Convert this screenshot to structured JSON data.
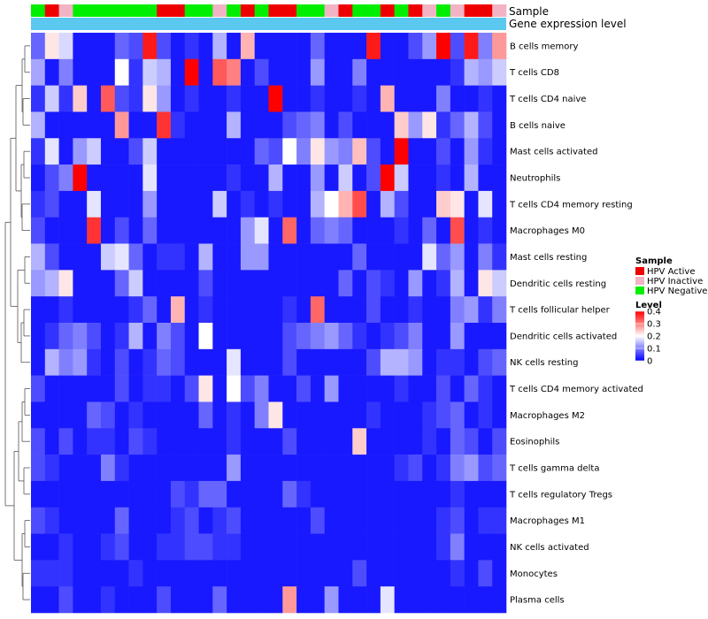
{
  "chart_data": {
    "type": "heatmap",
    "annotation_tracks": [
      "Sample",
      "Gene expression level"
    ],
    "sample_groups": [
      "HPV Active",
      "HPV Inactive",
      "HPV Negative"
    ],
    "sample_group_colors": {
      "HPV Active": "#ee0000",
      "HPV Inactive": "#f2b4c4",
      "HPV Negative": "#00ee00"
    },
    "gene_expression_color": "#5bc8f0",
    "samples": [
      "N",
      "A",
      "I",
      "N",
      "N",
      "N",
      "N",
      "N",
      "N",
      "A",
      "A",
      "N",
      "N",
      "I",
      "N",
      "A",
      "N",
      "A",
      "A",
      "N",
      "N",
      "I",
      "A",
      "N",
      "N",
      "A",
      "N",
      "A",
      "I",
      "N",
      "I",
      "A",
      "A",
      "I"
    ],
    "rows": [
      "B cells memory",
      "T cells CD8",
      "T cells CD4 naive",
      "B cells naive",
      "Mast cells activated",
      "Neutrophils",
      "T cells CD4 memory resting",
      "Macrophages M0",
      "Mast cells resting",
      "Dendritic cells resting",
      "T cells follicular helper",
      "Dendritic cells activated",
      "NK cells resting",
      "T cells CD4 memory activated",
      "Macrophages M2",
      "Eosinophils",
      "T cells gamma delta",
      "T cells regulatory  Tregs",
      "Macrophages M1",
      "NK cells activated",
      "Monocytes",
      "Plasma cells"
    ],
    "values": [
      [
        0.08,
        0.22,
        0.17,
        0.02,
        0.02,
        0.02,
        0.08,
        0.06,
        0.38,
        0.06,
        0.02,
        0.04,
        0.02,
        0.14,
        0.02,
        0.26,
        0.02,
        0.02,
        0.02,
        0.02,
        0.08,
        0.02,
        0.02,
        0.02,
        0.38,
        0.02,
        0.02,
        0.06,
        0.12,
        0.4,
        0.06,
        0.38,
        0.1,
        0.28
      ],
      [
        0.13,
        0.02,
        0.1,
        0.02,
        0.02,
        0.02,
        0.2,
        0.04,
        0.16,
        0.14,
        0.02,
        0.4,
        0.02,
        0.33,
        0.3,
        0.02,
        0.06,
        0.02,
        0.02,
        0.02,
        0.12,
        0.02,
        0.02,
        0.1,
        0.02,
        0.02,
        0.02,
        0.02,
        0.02,
        0.02,
        0.04,
        0.14,
        0.12,
        0.16
      ],
      [
        0.04,
        0.16,
        0.04,
        0.24,
        0.02,
        0.33,
        0.06,
        0.04,
        0.22,
        0.12,
        0.02,
        0.04,
        0.02,
        0.02,
        0.04,
        0.02,
        0.02,
        0.4,
        0.02,
        0.02,
        0.04,
        0.02,
        0.02,
        0.04,
        0.02,
        0.26,
        0.02,
        0.02,
        0.02,
        0.1,
        0.02,
        0.02,
        0.04,
        0.02
      ],
      [
        0.14,
        0.02,
        0.02,
        0.02,
        0.02,
        0.02,
        0.28,
        0.02,
        0.02,
        0.36,
        0.04,
        0.02,
        0.02,
        0.02,
        0.14,
        0.02,
        0.02,
        0.02,
        0.06,
        0.08,
        0.1,
        0.02,
        0.06,
        0.02,
        0.02,
        0.02,
        0.24,
        0.12,
        0.22,
        0.04,
        0.08,
        0.14,
        0.06,
        0.02
      ],
      [
        0.04,
        0.18,
        0.02,
        0.12,
        0.16,
        0.02,
        0.02,
        0.06,
        0.16,
        0.02,
        0.02,
        0.02,
        0.02,
        0.02,
        0.02,
        0.02,
        0.08,
        0.06,
        0.2,
        0.1,
        0.22,
        0.12,
        0.1,
        0.25,
        0.06,
        0.02,
        0.4,
        0.02,
        0.02,
        0.06,
        0.02,
        0.12,
        0.04,
        0.02
      ],
      [
        0.02,
        0.06,
        0.1,
        0.4,
        0.02,
        0.02,
        0.02,
        0.02,
        0.18,
        0.02,
        0.02,
        0.02,
        0.02,
        0.02,
        0.04,
        0.02,
        0.02,
        0.14,
        0.02,
        0.02,
        0.12,
        0.02,
        0.16,
        0.02,
        0.06,
        0.4,
        0.16,
        0.02,
        0.02,
        0.04,
        0.02,
        0.14,
        0.02,
        0.02
      ],
      [
        0.04,
        0.06,
        0.02,
        0.02,
        0.18,
        0.02,
        0.02,
        0.02,
        0.12,
        0.02,
        0.02,
        0.02,
        0.02,
        0.16,
        0.02,
        0.04,
        0.02,
        0.04,
        0.02,
        0.02,
        0.14,
        0.2,
        0.26,
        0.34,
        0.02,
        0.14,
        0.06,
        0.02,
        0.02,
        0.24,
        0.22,
        0.02,
        0.18,
        0.02
      ],
      [
        0.06,
        0.02,
        0.02,
        0.02,
        0.36,
        0.02,
        0.06,
        0.02,
        0.08,
        0.02,
        0.02,
        0.02,
        0.02,
        0.02,
        0.02,
        0.12,
        0.18,
        0.02,
        0.32,
        0.02,
        0.08,
        0.1,
        0.08,
        0.02,
        0.02,
        0.02,
        0.04,
        0.02,
        0.08,
        0.02,
        0.34,
        0.02,
        0.04,
        0.02
      ],
      [
        0.14,
        0.06,
        0.02,
        0.02,
        0.02,
        0.16,
        0.18,
        0.08,
        0.02,
        0.04,
        0.04,
        0.02,
        0.14,
        0.02,
        0.02,
        0.12,
        0.12,
        0.02,
        0.02,
        0.02,
        0.02,
        0.02,
        0.02,
        0.08,
        0.02,
        0.02,
        0.02,
        0.02,
        0.18,
        0.08,
        0.12,
        0.02,
        0.1,
        0.04
      ],
      [
        0.12,
        0.14,
        0.22,
        0.02,
        0.02,
        0.02,
        0.08,
        0.16,
        0.02,
        0.02,
        0.02,
        0.02,
        0.06,
        0.02,
        0.02,
        0.02,
        0.02,
        0.02,
        0.02,
        0.02,
        0.02,
        0.02,
        0.08,
        0.02,
        0.06,
        0.04,
        0.02,
        0.12,
        0.02,
        0.04,
        0.14,
        0.02,
        0.22,
        0.16
      ],
      [
        0.02,
        0.02,
        0.04,
        0.02,
        0.02,
        0.02,
        0.02,
        0.04,
        0.08,
        0.02,
        0.26,
        0.02,
        0.04,
        0.02,
        0.02,
        0.02,
        0.02,
        0.02,
        0.04,
        0.02,
        0.32,
        0.02,
        0.02,
        0.02,
        0.06,
        0.02,
        0.02,
        0.04,
        0.02,
        0.02,
        0.1,
        0.12,
        0.04,
        0.1
      ],
      [
        0.02,
        0.04,
        0.08,
        0.1,
        0.06,
        0.02,
        0.04,
        0.14,
        0.02,
        0.1,
        0.06,
        0.02,
        0.2,
        0.02,
        0.02,
        0.02,
        0.02,
        0.02,
        0.06,
        0.08,
        0.1,
        0.12,
        0.08,
        0.04,
        0.02,
        0.04,
        0.06,
        0.1,
        0.02,
        0.02,
        0.12,
        0.02,
        0.02,
        0.02
      ],
      [
        0.02,
        0.14,
        0.1,
        0.12,
        0.04,
        0.02,
        0.06,
        0.02,
        0.04,
        0.08,
        0.06,
        0.02,
        0.02,
        0.02,
        0.18,
        0.02,
        0.02,
        0.02,
        0.06,
        0.02,
        0.02,
        0.02,
        0.02,
        0.02,
        0.06,
        0.14,
        0.14,
        0.12,
        0.02,
        0.04,
        0.04,
        0.02,
        0.06,
        0.08
      ],
      [
        0.06,
        0.02,
        0.02,
        0.02,
        0.02,
        0.02,
        0.06,
        0.02,
        0.04,
        0.04,
        0.02,
        0.06,
        0.22,
        0.02,
        0.2,
        0.06,
        0.1,
        0.02,
        0.02,
        0.06,
        0.02,
        0.12,
        0.02,
        0.02,
        0.02,
        0.02,
        0.04,
        0.02,
        0.02,
        0.06,
        0.02,
        0.08,
        0.04,
        0.02
      ],
      [
        0.02,
        0.02,
        0.02,
        0.02,
        0.08,
        0.06,
        0.02,
        0.04,
        0.02,
        0.02,
        0.02,
        0.02,
        0.08,
        0.02,
        0.04,
        0.02,
        0.1,
        0.22,
        0.02,
        0.02,
        0.02,
        0.02,
        0.02,
        0.02,
        0.04,
        0.02,
        0.02,
        0.02,
        0.04,
        0.06,
        0.08,
        0.02,
        0.04,
        0.02
      ],
      [
        0.06,
        0.02,
        0.06,
        0.02,
        0.04,
        0.04,
        0.02,
        0.06,
        0.04,
        0.02,
        0.02,
        0.02,
        0.02,
        0.02,
        0.04,
        0.02,
        0.02,
        0.02,
        0.06,
        0.02,
        0.02,
        0.02,
        0.02,
        0.24,
        0.02,
        0.02,
        0.02,
        0.02,
        0.04,
        0.02,
        0.08,
        0.06,
        0.02,
        0.06
      ],
      [
        0.06,
        0.04,
        0.02,
        0.02,
        0.02,
        0.1,
        0.04,
        0.02,
        0.02,
        0.02,
        0.02,
        0.02,
        0.02,
        0.02,
        0.12,
        0.02,
        0.02,
        0.02,
        0.02,
        0.02,
        0.02,
        0.02,
        0.02,
        0.02,
        0.02,
        0.02,
        0.04,
        0.06,
        0.02,
        0.04,
        0.1,
        0.12,
        0.06,
        0.08
      ],
      [
        0.02,
        0.02,
        0.02,
        0.02,
        0.02,
        0.02,
        0.02,
        0.02,
        0.02,
        0.02,
        0.06,
        0.04,
        0.08,
        0.08,
        0.02,
        0.02,
        0.02,
        0.02,
        0.08,
        0.04,
        0.02,
        0.02,
        0.02,
        0.02,
        0.02,
        0.02,
        0.02,
        0.02,
        0.02,
        0.02,
        0.04,
        0.02,
        0.02,
        0.02
      ],
      [
        0.06,
        0.04,
        0.02,
        0.02,
        0.02,
        0.02,
        0.08,
        0.02,
        0.02,
        0.02,
        0.04,
        0.06,
        0.02,
        0.04,
        0.06,
        0.02,
        0.02,
        0.02,
        0.02,
        0.02,
        0.06,
        0.02,
        0.02,
        0.02,
        0.02,
        0.02,
        0.02,
        0.02,
        0.02,
        0.04,
        0.06,
        0.02,
        0.04,
        0.04
      ],
      [
        0.02,
        0.02,
        0.04,
        0.02,
        0.02,
        0.04,
        0.06,
        0.02,
        0.02,
        0.04,
        0.04,
        0.06,
        0.06,
        0.04,
        0.04,
        0.02,
        0.02,
        0.02,
        0.02,
        0.02,
        0.02,
        0.02,
        0.02,
        0.02,
        0.02,
        0.02,
        0.02,
        0.02,
        0.02,
        0.04,
        0.1,
        0.02,
        0.02,
        0.02
      ],
      [
        0.04,
        0.04,
        0.04,
        0.02,
        0.02,
        0.02,
        0.02,
        0.04,
        0.02,
        0.02,
        0.02,
        0.02,
        0.02,
        0.02,
        0.02,
        0.02,
        0.02,
        0.02,
        0.02,
        0.02,
        0.02,
        0.02,
        0.02,
        0.06,
        0.02,
        0.02,
        0.02,
        0.02,
        0.02,
        0.02,
        0.04,
        0.02,
        0.06,
        0.02
      ],
      [
        0.02,
        0.02,
        0.06,
        0.02,
        0.02,
        0.04,
        0.02,
        0.02,
        0.02,
        0.06,
        0.02,
        0.02,
        0.02,
        0.08,
        0.02,
        0.02,
        0.02,
        0.02,
        0.28,
        0.02,
        0.02,
        0.12,
        0.02,
        0.02,
        0.02,
        0.18,
        0.02,
        0.02,
        0.02,
        0.02,
        0.02,
        0.02,
        0.02,
        0.02
      ]
    ],
    "legend_sample_title": "Sample",
    "legend_level_title": "Level",
    "level_ticks": [
      0.4,
      0.3,
      0.2,
      0.1,
      0
    ],
    "level_colors": [
      "#0000ff",
      "#ffffff",
      "#ff0000"
    ],
    "row_dendrogram": {
      "order_groups": [
        [
          0,
          1,
          2,
          3
        ],
        [
          4,
          5,
          6,
          7
        ],
        [
          8,
          9
        ],
        [
          10,
          11,
          12
        ],
        [
          13,
          14,
          15
        ],
        [
          16,
          17
        ],
        [
          18,
          19,
          20,
          21
        ]
      ]
    }
  }
}
